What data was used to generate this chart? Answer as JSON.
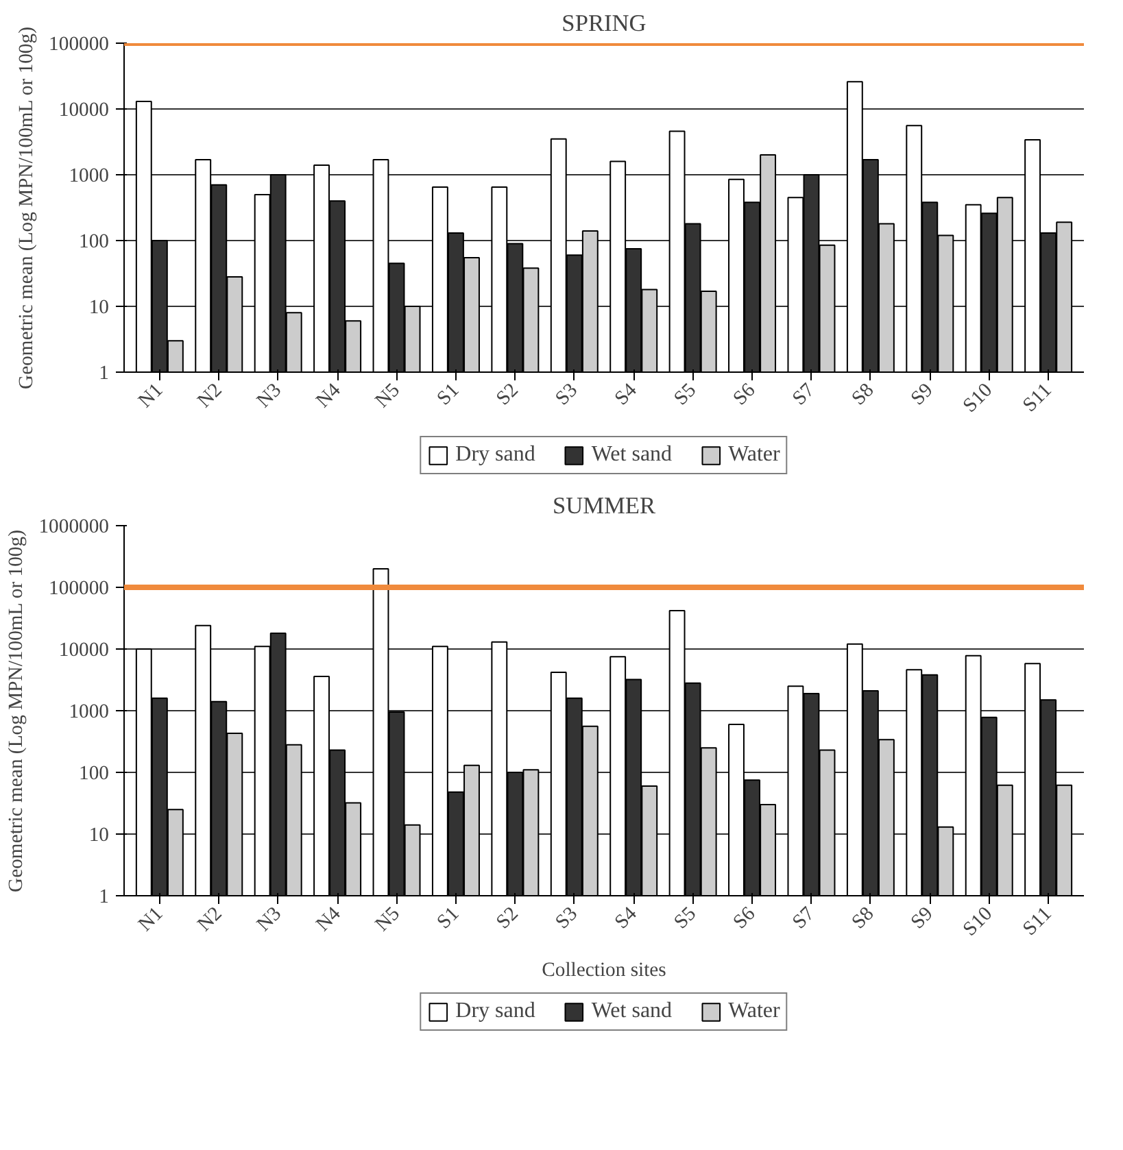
{
  "chart_data": [
    {
      "type": "bar",
      "title": "SPRING",
      "ylabel": "Geometric mean (Log MPN/100mL or 100g)",
      "log": "y",
      "grid": "y",
      "legend": "bottom",
      "categories": [
        "N1",
        "N2",
        "N3",
        "N4",
        "N5",
        "S1",
        "S2",
        "S3",
        "S4",
        "S5",
        "S6",
        "S7",
        "S8",
        "S9",
        "S10",
        "S11"
      ],
      "ylim": [
        1,
        100000
      ],
      "yticks": [
        1,
        10,
        100,
        1000,
        10000,
        100000
      ],
      "series": [
        {
          "name": "Dry sand",
          "color": "#ffffff",
          "values": [
            13000,
            1700,
            500,
            1400,
            1700,
            650,
            650,
            3500,
            1600,
            4600,
            850,
            450,
            26000,
            5600,
            350,
            3400
          ]
        },
        {
          "name": "Wet sand",
          "color": "#333333",
          "values": [
            100,
            700,
            1000,
            400,
            45,
            130,
            90,
            60,
            75,
            180,
            380,
            1000,
            1700,
            380,
            260,
            130
          ]
        },
        {
          "name": "Water",
          "color": "#cccccc",
          "values": [
            3,
            28,
            8,
            6,
            10,
            55,
            38,
            140,
            18,
            17,
            2000,
            85,
            180,
            120,
            450,
            190
          ]
        }
      ],
      "ref_lines": [
        {
          "axis": "y",
          "value": 100000,
          "color": "#f08a3c"
        }
      ]
    },
    {
      "type": "bar",
      "title": "SUMMER",
      "ylabel": "Geometric mean (Log MPN/100mL or 100g)",
      "xlabel": "Collection sites",
      "log": "y",
      "grid": "y",
      "legend": "bottom",
      "categories": [
        "N1",
        "N2",
        "N3",
        "N4",
        "N5",
        "S1",
        "S2",
        "S3",
        "S4",
        "S5",
        "S6",
        "S7",
        "S8",
        "S9",
        "S10",
        "S11"
      ],
      "ylim": [
        1,
        1000000
      ],
      "yticks": [
        1,
        10,
        100,
        1000,
        10000,
        100000,
        1000000
      ],
      "series": [
        {
          "name": "Dry sand",
          "color": "#ffffff",
          "values": [
            10000,
            24000,
            11000,
            3600,
            200000,
            11000,
            13000,
            4200,
            7500,
            42000,
            600,
            2500,
            12000,
            4600,
            7800,
            5800
          ]
        },
        {
          "name": "Wet sand",
          "color": "#333333",
          "values": [
            1600,
            1400,
            18000,
            230,
            950,
            48,
            100,
            1600,
            3200,
            2800,
            75,
            1900,
            2100,
            3800,
            780,
            1500
          ]
        },
        {
          "name": "Water",
          "color": "#cccccc",
          "values": [
            25,
            430,
            280,
            32,
            14,
            130,
            110,
            560,
            60,
            250,
            30,
            230,
            340,
            13,
            62,
            62
          ]
        }
      ],
      "ref_lines": [
        {
          "axis": "y",
          "value": 100000,
          "color": "#f08a3c"
        }
      ]
    }
  ]
}
